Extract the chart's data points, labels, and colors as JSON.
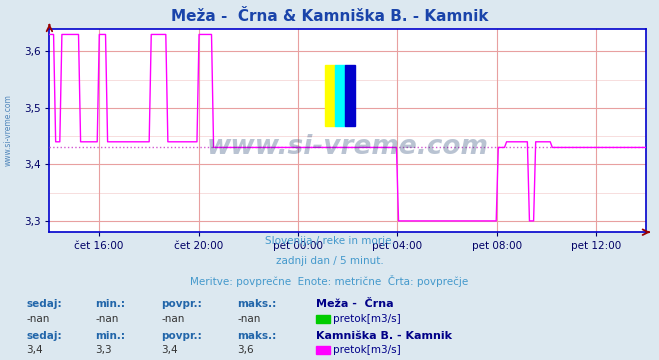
{
  "title": "Meža -  Črna & Kamniška B. - Kamnik",
  "background_color": "#dce8f0",
  "plot_bg_color": "#ffffff",
  "grid_color": "#e8a0a0",
  "grid_minor_color": "#f4d0d0",
  "axis_color": "#0000cc",
  "tick_label_color": "#000066",
  "subtitle_lines": [
    "Slovenija / reke in morje.",
    "zadnji dan / 5 minut.",
    "Meritve: povprečne  Enote: metrične  Črta: povprečje"
  ],
  "subtitle_color": "#4499cc",
  "ylim": [
    3.28,
    3.64
  ],
  "yticks": [
    3.3,
    3.4,
    3.5,
    3.6
  ],
  "ytick_labels": [
    "3,3",
    "3,4",
    "3,5",
    "3,6"
  ],
  "xtick_labels": [
    "čet 16:00",
    "čet 20:00",
    "pet 00:00",
    "pet 04:00",
    "pet 08:00",
    "pet 12:00"
  ],
  "xtick_positions": [
    0.083,
    0.25,
    0.417,
    0.583,
    0.75,
    0.917
  ],
  "n_points": 288,
  "kamnik_color": "#ff00ff",
  "meza_color": "#00cc00",
  "avg_line_color": "#cc44cc",
  "avg_value": 3.43,
  "watermark_text": "www.si-vreme.com",
  "watermark_color": "#1a3a6a",
  "watermark_alpha": 0.3,
  "legend_label_color": "#2266aa",
  "legend_value_color": "#333333",
  "series1_name": "Meža -  Črna",
  "series1_sedaj": "-nan",
  "series1_min": "-nan",
  "series1_povpr": "-nan",
  "series1_maks": "-nan",
  "series1_unit": "pretok[m3/s]",
  "series1_swatch": "#00cc00",
  "series2_name": "Kamniška B. - Kamnik",
  "series2_sedaj": "3,4",
  "series2_min": "3,3",
  "series2_povpr": "3,4",
  "series2_maks": "3,6",
  "series2_unit": "pretok[m3/s]",
  "series2_swatch": "#ff00ff",
  "arrow_color": "#990000",
  "sidewatermark_color": "#2266aa",
  "logo_colors": [
    "#ffff00",
    "#00ffff",
    "#0000cc"
  ]
}
